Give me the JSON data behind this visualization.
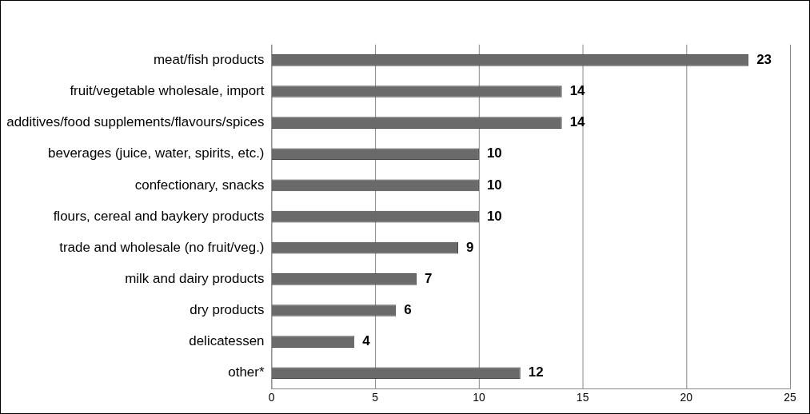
{
  "chart_data": {
    "type": "bar",
    "orientation": "horizontal",
    "categories": [
      "meat/fish products",
      "fruit/vegetable wholesale, import",
      "additives/food supplements/flavours/spices",
      "beverages (juice, water, spirits, etc.)",
      "confectionary, snacks",
      "flours, cereal and baykery products",
      "trade and wholesale (no fruit/veg.)",
      "milk and dairy products",
      "dry products",
      "delicatessen",
      "other*"
    ],
    "values": [
      23,
      14,
      14,
      10,
      10,
      10,
      9,
      7,
      6,
      4,
      12
    ],
    "color": "#6a6a6a",
    "xlim": [
      0,
      25
    ],
    "xticks": [
      0,
      5,
      10,
      15,
      20,
      25
    ],
    "grid": "x",
    "data_labels": true
  }
}
